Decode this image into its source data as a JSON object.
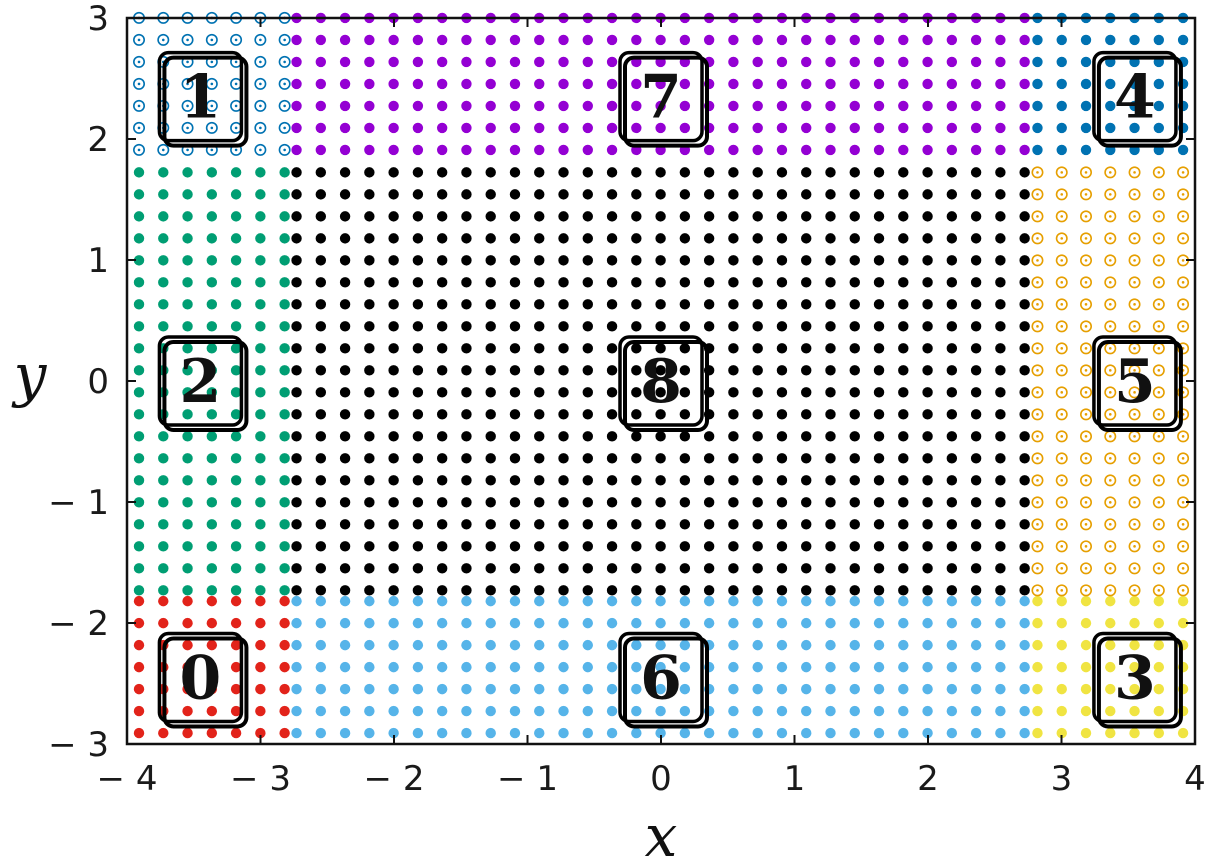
{
  "chart_data": {
    "type": "scatter",
    "xlabel": "x",
    "ylabel": "y",
    "xlim": [
      -4,
      4
    ],
    "ylim": [
      -3,
      3
    ],
    "xticks": [
      -4,
      -3,
      -2,
      -1,
      0,
      1,
      2,
      3,
      4
    ],
    "yticks": [
      -3,
      -2,
      -1,
      0,
      1,
      2,
      3
    ],
    "xtick_labels": [
      "− 4",
      "− 3",
      "− 2",
      "− 1",
      "0",
      "1",
      "2",
      "3",
      "4"
    ],
    "ytick_labels": [
      "− 3",
      "− 2",
      "− 1",
      "0",
      "1",
      "2",
      "3"
    ],
    "grid": false,
    "grid_spacing": 0.1818,
    "regions": [
      {
        "label": "0",
        "color": "#e2231a",
        "marker": "filled",
        "x_range": [
          -3.91,
          -2.82
        ],
        "y_range": [
          -2.91,
          -1.82
        ],
        "box_center": [
          -3.45,
          -2.45
        ]
      },
      {
        "label": "1",
        "color": "#0072b2",
        "marker": "open",
        "x_range": [
          -3.91,
          -2.82
        ],
        "y_range": [
          1.91,
          2.91
        ],
        "box_center": [
          -3.45,
          2.35
        ]
      },
      {
        "label": "2",
        "color": "#009e73",
        "marker": "filled",
        "x_range": [
          -3.91,
          -2.82
        ],
        "y_range": [
          -1.73,
          1.73
        ],
        "box_center": [
          -3.45,
          0.0
        ]
      },
      {
        "label": "3",
        "color": "#f0e442",
        "marker": "filled",
        "x_range": [
          2.82,
          3.91
        ],
        "y_range": [
          -2.91,
          -1.82
        ],
        "box_center": [
          3.55,
          -2.45
        ]
      },
      {
        "label": "4",
        "color": "#0072b2",
        "marker": "filled",
        "x_range": [
          2.82,
          3.91
        ],
        "y_range": [
          1.91,
          2.91
        ],
        "box_center": [
          3.55,
          2.35
        ]
      },
      {
        "label": "5",
        "color": "#e69f00",
        "marker": "open",
        "x_range": [
          2.82,
          3.91
        ],
        "y_range": [
          -1.73,
          1.73
        ],
        "box_center": [
          3.55,
          0.0
        ]
      },
      {
        "label": "6",
        "color": "#56b4e9",
        "marker": "filled",
        "x_range": [
          -2.73,
          2.73
        ],
        "y_range": [
          -2.91,
          -1.82
        ],
        "box_center": [
          0.0,
          -2.45
        ]
      },
      {
        "label": "7",
        "color": "#9400d3",
        "marker": "filled",
        "x_range": [
          -2.73,
          2.73
        ],
        "y_range": [
          1.91,
          2.91
        ],
        "box_center": [
          0.0,
          2.35
        ]
      },
      {
        "label": "8",
        "color": "#000000",
        "marker": "filled",
        "x_range": [
          -2.73,
          2.73
        ],
        "y_range": [
          -1.73,
          1.73
        ],
        "box_center": [
          0.0,
          0.0
        ]
      }
    ]
  }
}
